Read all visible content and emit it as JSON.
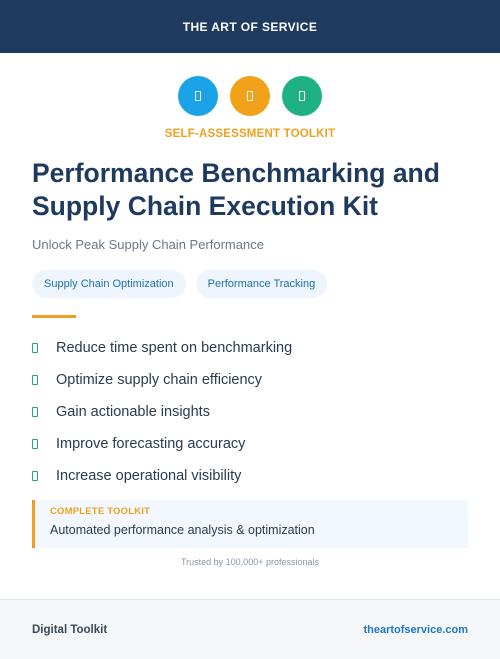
{
  "header": {
    "brand": "THE ART OF SERVICE"
  },
  "icons": [
    {
      "name": "document-icon",
      "color": "#1aa3e6"
    },
    {
      "name": "document-icon",
      "color": "#f2a21a"
    },
    {
      "name": "document-icon",
      "color": "#1fb184"
    }
  ],
  "eyebrow": "SELF-ASSESSMENT TOOLKIT",
  "title": "Performance Benchmarking and Supply Chain Execution Kit",
  "subtitle": "Unlock Peak Supply Chain Performance",
  "tags": [
    "Supply Chain Optimization",
    "Performance Tracking"
  ],
  "benefits": [
    "Reduce time spent on benchmarking",
    "Optimize supply chain efficiency",
    "Gain actionable insights",
    "Improve forecasting accuracy",
    "Increase operational visibility"
  ],
  "callout": {
    "label": "COMPLETE TOOLKIT",
    "text": "Automated performance analysis & optimization"
  },
  "trust_line": "Trusted by 100,000+ professionals",
  "footer": {
    "label": "Digital Toolkit",
    "link": "theartofservice.com"
  },
  "colors": {
    "navy": "#1e3a5f",
    "accent_orange": "#f0a020",
    "check_green": "#1aab7a",
    "link_blue": "#1e78c8"
  }
}
